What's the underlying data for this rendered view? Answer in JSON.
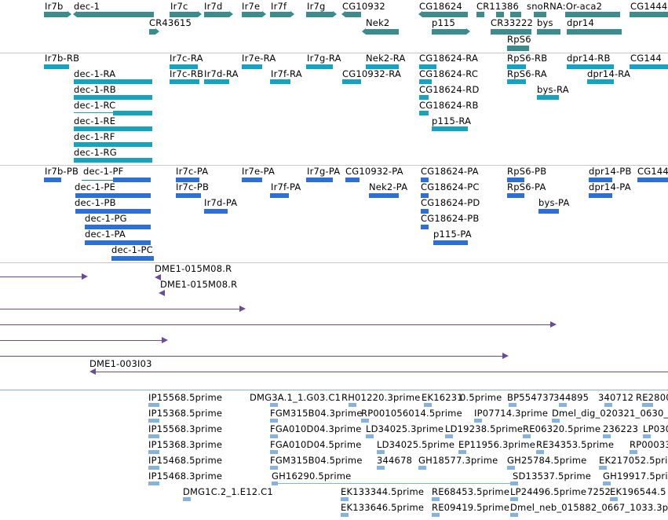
{
  "genes": [
    {
      "label": "Ir7b"
    },
    {
      "label": "dec-1"
    },
    {
      "label": "Ir7c"
    },
    {
      "label": "Ir7d"
    },
    {
      "label": "Ir7e"
    },
    {
      "label": "Ir7f"
    },
    {
      "label": "Ir7g"
    },
    {
      "label": "CG10932"
    },
    {
      "label": "CG18624"
    },
    {
      "label": "CR11386"
    },
    {
      "label": "snoRNA:Or-aca2"
    },
    {
      "label": "CG1444"
    },
    {
      "label": "CR43615"
    },
    {
      "label": "Nek2"
    },
    {
      "label": "p115"
    },
    {
      "label": "CR33222"
    },
    {
      "label": "bys"
    },
    {
      "label": "dpr14"
    },
    {
      "label": "RpS6"
    }
  ],
  "transcripts": [
    {
      "label": "Ir7b-RB"
    },
    {
      "label": "Ir7c-RA"
    },
    {
      "label": "Ir7e-RA"
    },
    {
      "label": "Ir7g-RA"
    },
    {
      "label": "Nek2-RA"
    },
    {
      "label": "CG18624-RA"
    },
    {
      "label": "RpS6-RB"
    },
    {
      "label": "dpr14-RB"
    },
    {
      "label": "CG144"
    },
    {
      "label": "dec-1-RA"
    },
    {
      "label": "Ir7c-RB"
    },
    {
      "label": "Ir7d-RA"
    },
    {
      "label": "Ir7f-RA"
    },
    {
      "label": "CG10932-RA"
    },
    {
      "label": "CG18624-RC"
    },
    {
      "label": "RpS6-RA"
    },
    {
      "label": "dpr14-RA"
    },
    {
      "label": "dec-1-RB"
    },
    {
      "label": "CG18624-RD"
    },
    {
      "label": "bys-RA"
    },
    {
      "label": "dec-1-RC"
    },
    {
      "label": "CG18624-RB"
    },
    {
      "label": "dec-1-RE"
    },
    {
      "label": "p115-RA"
    },
    {
      "label": "dec-1-RF"
    },
    {
      "label": "dec-1-RG"
    }
  ],
  "proteins": [
    {
      "label": "Ir7b-PB"
    },
    {
      "label": "dec-1-PF"
    },
    {
      "label": "Ir7c-PA"
    },
    {
      "label": "Ir7e-PA"
    },
    {
      "label": "Ir7g-PA"
    },
    {
      "label": "CG10932-PA"
    },
    {
      "label": "CG18624-PA"
    },
    {
      "label": "RpS6-PB"
    },
    {
      "label": "dpr14-PB"
    },
    {
      "label": "CG144"
    },
    {
      "label": "dec-1-PE"
    },
    {
      "label": "Ir7c-PB"
    },
    {
      "label": "Ir7f-PA"
    },
    {
      "label": "Nek2-PA"
    },
    {
      "label": "CG18624-PC"
    },
    {
      "label": "RpS6-PA"
    },
    {
      "label": "dpr14-PA"
    },
    {
      "label": "dec-1-PB"
    },
    {
      "label": "Ir7d-PA"
    },
    {
      "label": "CG18624-PD"
    },
    {
      "label": "bys-PA"
    },
    {
      "label": "dec-1-PG"
    },
    {
      "label": "CG18624-PB"
    },
    {
      "label": "dec-1-PA"
    },
    {
      "label": "p115-PA"
    },
    {
      "label": "dec-1-PC"
    }
  ],
  "clones": [
    {
      "label": "DME1-015M08.R"
    },
    {
      "label": "DME1-015M08.R"
    },
    {
      "label": "DME1-003I03"
    }
  ],
  "ests": [
    {
      "label": "IP15568.5prime"
    },
    {
      "label": "DMG3A.1_1.G03.C1"
    },
    {
      "label": "RH01220.3prime"
    },
    {
      "label": "EK16231"
    },
    {
      "label": "0.5prime"
    },
    {
      "label": "BP554737"
    },
    {
      "label": "344895"
    },
    {
      "label": "340712"
    },
    {
      "label": "RE2800"
    },
    {
      "label": "IP15368.5prime"
    },
    {
      "label": "FGM315B04.3prime"
    },
    {
      "label": "RP001056014.5prime"
    },
    {
      "label": "IP07714.3prime"
    },
    {
      "label": "Dmel_dig_020321_0630_"
    },
    {
      "label": "IP15568.3prime"
    },
    {
      "label": "FGA010D04.3prime"
    },
    {
      "label": "LD34025.3prime"
    },
    {
      "label": "LD19238.5prime"
    },
    {
      "label": "RE06320.5prime"
    },
    {
      "label": "236223"
    },
    {
      "label": "LP030"
    },
    {
      "label": "IP15368.3prime"
    },
    {
      "label": "FGA010D04.5prime"
    },
    {
      "label": "LD34025.5prime"
    },
    {
      "label": "EP11956.3prime"
    },
    {
      "label": "RE34353.5prime"
    },
    {
      "label": "RP00033"
    },
    {
      "label": "IP15468.5prime"
    },
    {
      "label": "FGM315B04.5prime"
    },
    {
      "label": "344678"
    },
    {
      "label": "GH18577.3prime"
    },
    {
      "label": "GH25784.5prime"
    },
    {
      "label": "EK217052.5prime"
    },
    {
      "label": "IP15468.3prime"
    },
    {
      "label": "GH16290.5prime"
    },
    {
      "label": "SD13537.5prime"
    },
    {
      "label": "GH19917.5prime"
    },
    {
      "label": "DMG1C.2_1.E12.C1"
    },
    {
      "label": "EK133344.5prime"
    },
    {
      "label": "RE68453.5prime"
    },
    {
      "label": "LP24496.5prime"
    },
    {
      "label": "7252"
    },
    {
      "label": "EK196544.5"
    },
    {
      "label": "EK133646.5prime"
    },
    {
      "label": "RE09419.5prime"
    },
    {
      "label": "Dmel_neb_015882_0667_1033.3p"
    }
  ]
}
